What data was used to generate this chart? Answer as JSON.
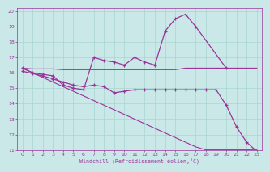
{
  "xlabel": "Windchill (Refroidissement éolien,°C)",
  "bg_color": "#cbe8e8",
  "grid_color": "#a8d4d0",
  "line_color": "#993399",
  "xlim": [
    -0.5,
    23.5
  ],
  "ylim": [
    11,
    20.2
  ],
  "xticks": [
    0,
    1,
    2,
    3,
    4,
    5,
    6,
    7,
    8,
    9,
    10,
    11,
    12,
    13,
    14,
    15,
    16,
    17,
    18,
    19,
    20,
    21,
    22,
    23
  ],
  "yticks": [
    11,
    12,
    13,
    14,
    15,
    16,
    17,
    18,
    19,
    20
  ],
  "curve1_x": [
    0,
    1,
    2,
    3,
    4,
    5,
    6,
    7,
    8,
    9,
    10,
    11,
    12,
    13,
    14,
    15,
    16,
    17,
    20
  ],
  "curve1_y": [
    16.3,
    16.0,
    15.9,
    15.8,
    15.2,
    15.0,
    14.9,
    17.0,
    16.8,
    16.7,
    16.5,
    17.0,
    16.7,
    16.5,
    18.7,
    19.5,
    19.8,
    19.0,
    16.3
  ],
  "curve2_x": [
    0,
    1,
    2,
    3,
    4,
    5,
    6,
    7,
    8,
    9,
    10,
    11,
    12,
    13,
    14,
    15,
    16,
    17,
    18,
    19,
    20,
    21,
    22,
    23
  ],
  "curve2_y": [
    16.3,
    16.25,
    16.25,
    16.25,
    16.2,
    16.2,
    16.2,
    16.2,
    16.2,
    16.2,
    16.2,
    16.2,
    16.2,
    16.2,
    16.2,
    16.2,
    16.3,
    16.3,
    16.3,
    16.3,
    16.3,
    16.3,
    16.3,
    16.3
  ],
  "curve3_x": [
    0,
    1,
    2,
    3,
    4,
    5,
    6,
    7,
    8,
    9,
    10,
    11,
    12,
    13,
    14,
    15,
    16,
    17,
    18,
    19,
    20,
    21,
    22,
    23
  ],
  "curve3_y": [
    16.1,
    15.95,
    15.8,
    15.6,
    15.4,
    15.2,
    15.1,
    15.2,
    15.1,
    14.7,
    14.8,
    14.9,
    14.9,
    14.9,
    14.9,
    14.9,
    14.9,
    14.9,
    14.9,
    14.9,
    13.9,
    12.5,
    11.5,
    10.9
  ],
  "curve4_x": [
    0,
    1,
    2,
    3,
    4,
    5,
    6,
    7,
    8,
    9,
    10,
    11,
    12,
    13,
    14,
    15,
    16,
    17,
    18,
    19,
    20,
    21,
    22,
    23
  ],
  "curve4_y": [
    16.3,
    16.0,
    15.7,
    15.4,
    15.1,
    14.8,
    14.5,
    14.2,
    13.9,
    13.6,
    13.3,
    13.0,
    12.7,
    12.4,
    12.1,
    11.8,
    11.5,
    11.2,
    11.0,
    11.0,
    11.0,
    11.0,
    11.0,
    11.0
  ]
}
